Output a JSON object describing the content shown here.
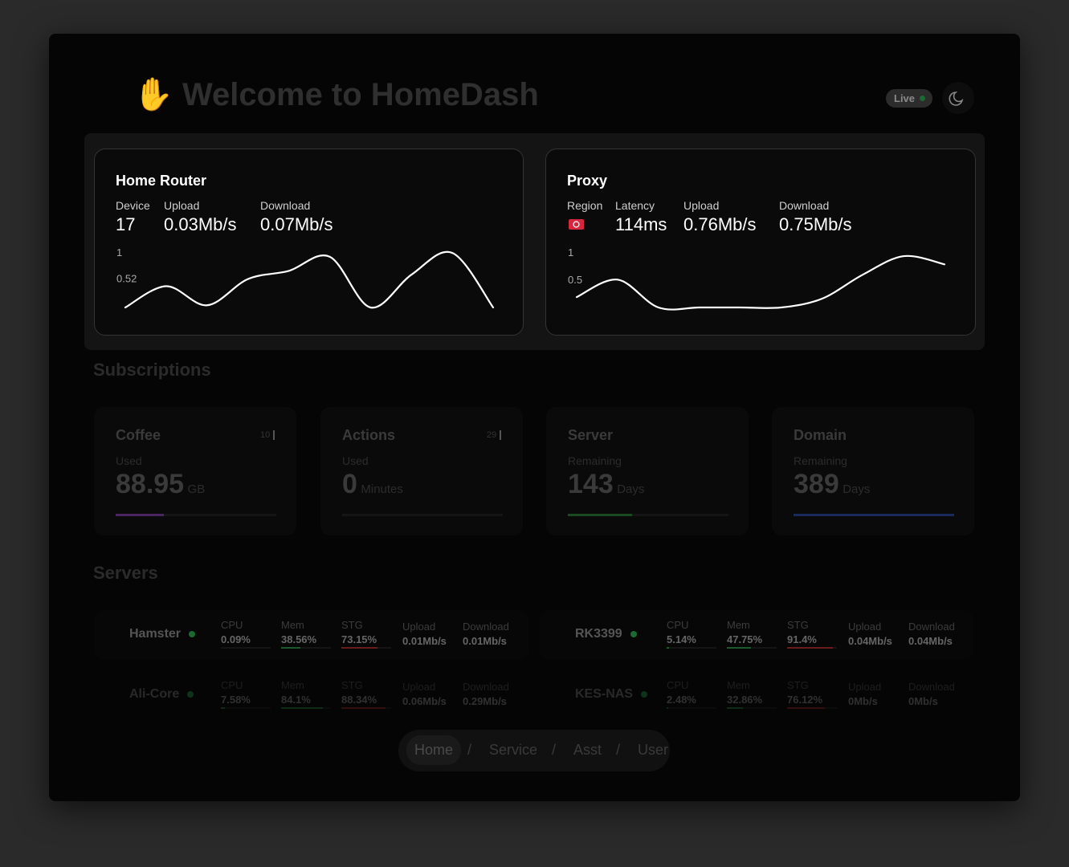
{
  "header": {
    "title": "Welcome to HomeDash",
    "live": "Live"
  },
  "router": {
    "title": "Home Router",
    "stats": [
      {
        "label": "Device",
        "value": "17"
      },
      {
        "label": "Upload",
        "value": "0.03Mb/s"
      },
      {
        "label": "Download",
        "value": "0.07Mb/s"
      }
    ],
    "chart": {
      "type": "line",
      "ylim": [
        0,
        1
      ],
      "yticks": [
        1,
        0.52
      ],
      "values": [
        0,
        0.39,
        0.04,
        0.52,
        0.67,
        0.93,
        0,
        0.6,
        1,
        0
      ]
    }
  },
  "proxy": {
    "title": "Proxy",
    "stats": [
      {
        "label": "Region"
      },
      {
        "label": "Latency",
        "value": "114ms"
      },
      {
        "label": "Upload",
        "value": "0.76Mb/s"
      },
      {
        "label": "Download",
        "value": "0.75Mb/s"
      }
    ],
    "chart": {
      "type": "line",
      "ylim": [
        0,
        1
      ],
      "yticks": [
        1,
        0.5
      ],
      "values": [
        0.19,
        0.51,
        0,
        0,
        0,
        0,
        0.16,
        0.6,
        0.94,
        0.79
      ]
    }
  },
  "subscriptions": {
    "title": "Subscriptions",
    "items": [
      {
        "name": "Coffee",
        "badge": "10",
        "label": "Used",
        "value": "88.95",
        "unit": "GB",
        "progress": 30,
        "color": "#4a2560"
      },
      {
        "name": "Actions",
        "badge": "29",
        "label": "Used",
        "value": "0",
        "unit": "Minutes",
        "progress": 0,
        "color": "#333333"
      },
      {
        "name": "Server",
        "label": "Remaining",
        "value": "143",
        "unit": "Days",
        "progress": 40,
        "color": "#1b4a22"
      },
      {
        "name": "Domain",
        "label": "Remaining",
        "value": "389",
        "unit": "Days",
        "progress": 100,
        "color": "#1b2a5c"
      }
    ]
  },
  "servers": {
    "title": "Servers",
    "columns": [
      "CPU",
      "Mem",
      "STG",
      "Upload",
      "Download"
    ],
    "items": [
      {
        "name": "Hamster",
        "cpu": {
          "value": 0.09,
          "label": "0.09%"
        },
        "mem": {
          "value": 38.56,
          "label": "38.56%"
        },
        "stg": {
          "value": 73.15,
          "label": "73.15%"
        },
        "upload": "0.01Mb/s",
        "download": "0.01Mb/s"
      },
      {
        "name": "RK3399",
        "cpu": {
          "value": 5.14,
          "label": "5.14%"
        },
        "mem": {
          "value": 47.75,
          "label": "47.75%"
        },
        "stg": {
          "value": 91.4,
          "label": "91.4%"
        },
        "upload": "0.04Mb/s",
        "download": "0.04Mb/s"
      },
      {
        "name": "Ali-Core",
        "cpu": {
          "value": 7.58,
          "label": "7.58%"
        },
        "mem": {
          "value": 84.1,
          "label": "84.1%"
        },
        "stg": {
          "value": 88.34,
          "label": "88.34%"
        },
        "upload": "0.06Mb/s",
        "download": "0.29Mb/s"
      },
      {
        "name": "KES-NAS",
        "cpu": {
          "value": 2.48,
          "label": "2.48%"
        },
        "mem": {
          "value": 32.86,
          "label": "32.86%"
        },
        "stg": {
          "value": 76.12,
          "label": "76.12%"
        },
        "upload": "0Mb/s",
        "download": "0Mb/s"
      }
    ]
  },
  "nav": {
    "items": [
      "Home",
      "Service",
      "Asst",
      "User"
    ],
    "separator": "/"
  }
}
